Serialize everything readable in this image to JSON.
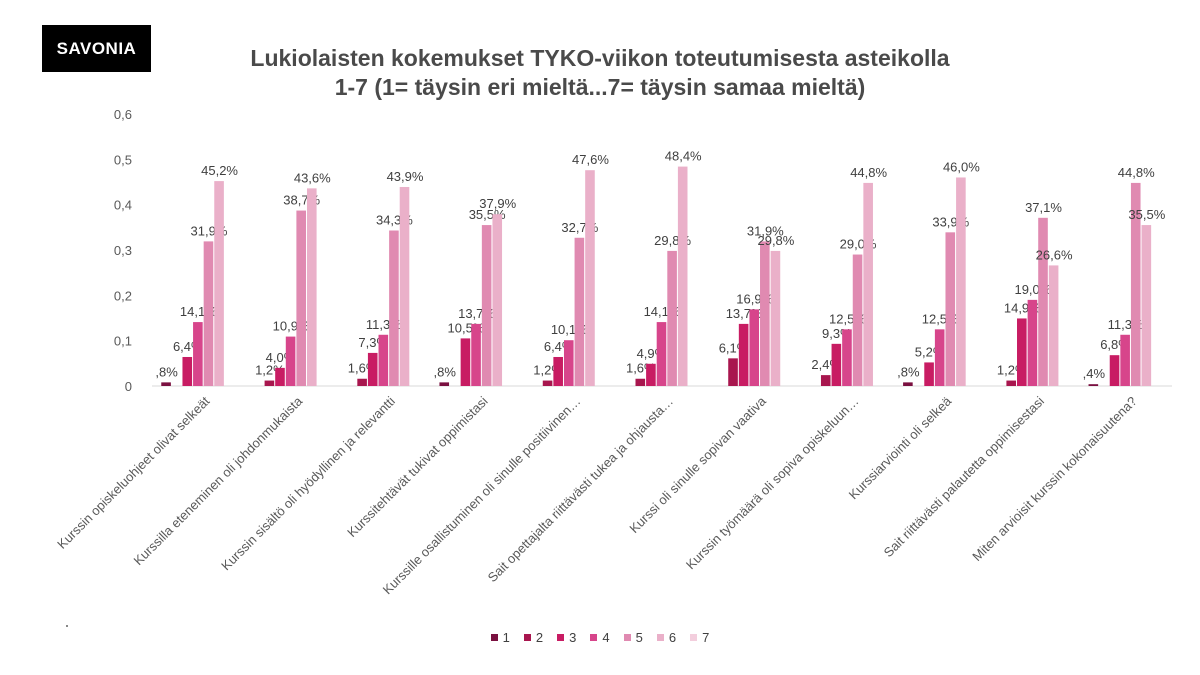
{
  "logo": "SAVONIA",
  "title_line1": "Lukiolaisten kokemukset TYKO-viikon toteutumisesta asteikolla",
  "title_line2": "1-7 (1= täysin eri mieltä...7= täysin samaa mieltä)",
  "colors": {
    "series": [
      "#7a1040",
      "#a8164e",
      "#c81c63",
      "#d7458b",
      "#e08ab1",
      "#eab0c9",
      "#f3cedd"
    ],
    "axis_text": "#595959",
    "label_text": "#404040",
    "gridline": "#d9d9d9"
  },
  "chart_data": {
    "type": "bar",
    "title": "Lukiolaisten kokemukset TYKO-viikon toteutumisesta asteikolla 1-7 (1= täysin eri mieltä...7= täysin samaa mieltä)",
    "ylim": [
      0,
      0.6
    ],
    "yticks": [
      "0",
      "0,1",
      "0,2",
      "0,3",
      "0,4",
      "0,5",
      "0,6"
    ],
    "grid": false,
    "legend_position": "bottom",
    "categories": [
      "Kurssin opiskeluohjeet olivat selkeät",
      "Kurssilla eteneminen oli johdonmukaista",
      "Kurssin sisältö oli hyödyllinen ja relevantti",
      "Kurssitehtävät tukivat oppimistasi",
      "Kurssille osallistuminen oli sinulle positiivinen…",
      "Sait opettajalta riittävästi tukea ja ohjausta…",
      "Kurssi oli sinulle sopivan vaativa",
      "Kurssin työmäärä oli sopiva opiskeluun…",
      "Kurssiarviointi oli selkeä",
      "Sait riittävästi palautetta oppimisestasi",
      "Miten arvioisit kurssin kokonaisuutena?"
    ],
    "series": [
      {
        "name": "1",
        "values": [
          0.008,
          0,
          0,
          0.008,
          0,
          0,
          0,
          0,
          0.008,
          0,
          0.004
        ],
        "labels": [
          ",8%",
          "",
          "",
          ",8%",
          "",
          "",
          "",
          "",
          ",8%",
          "",
          ",4%"
        ]
      },
      {
        "name": "2",
        "values": [
          0,
          0.012,
          0.016,
          0,
          0.012,
          0.016,
          0.061,
          0.024,
          0,
          0.012,
          0
        ],
        "labels": [
          "",
          "1,2%",
          "1,6%",
          "",
          "1,2%",
          "1,6%",
          "6,1%",
          "2,4%",
          "",
          "1,2%",
          ""
        ]
      },
      {
        "name": "3",
        "values": [
          0.064,
          0.04,
          0.073,
          0.105,
          0.064,
          0.049,
          0.137,
          0.093,
          0.052,
          0.149,
          0.068
        ],
        "labels": [
          "6,4%",
          "4,0%",
          "7,3%",
          "10,5%",
          "6,4%",
          "4,9%",
          "13,7%",
          "9,3%",
          "5,2%",
          "14,9%",
          "6,8%"
        ]
      },
      {
        "name": "4",
        "values": [
          0.141,
          0.109,
          0.113,
          0.137,
          0.101,
          0.141,
          0.169,
          0.125,
          0.125,
          0.19,
          0.113
        ],
        "labels": [
          "14,1%",
          "10,9%",
          "11,3%",
          "13,7%",
          "10,1%",
          "14,1%",
          "16,9%",
          "12,5%",
          "12,5%",
          "19,0%",
          "11,3%"
        ]
      },
      {
        "name": "5",
        "values": [
          0.319,
          0.387,
          0.343,
          0.355,
          0.327,
          0.298,
          0.319,
          0.29,
          0.339,
          0.371,
          0.448
        ],
        "labels": [
          "31,9%",
          "38,7%",
          "34,3%",
          "35,5%",
          "32,7%",
          "29,8%",
          "31,9%",
          "29,0%",
          "33,9%",
          "37,1%",
          "44,8%"
        ]
      },
      {
        "name": "6",
        "values": [
          0.452,
          0.436,
          0.439,
          0.379,
          0.476,
          0.484,
          0.298,
          0.448,
          0.46,
          0.266,
          0.355
        ],
        "labels": [
          "45,2%",
          "43,6%",
          "43,9%",
          "37,9%",
          "47,6%",
          "48,4%",
          "29,8%",
          "44,8%",
          "46,0%",
          "26,6%",
          "35,5%"
        ]
      },
      {
        "name": "7",
        "values": [
          0,
          0,
          0,
          0,
          0,
          0,
          0,
          0,
          0,
          0,
          0
        ],
        "labels": [
          "",
          "",
          "",
          "",
          "",
          "",
          "",
          "",
          "",
          "",
          ""
        ]
      }
    ]
  }
}
